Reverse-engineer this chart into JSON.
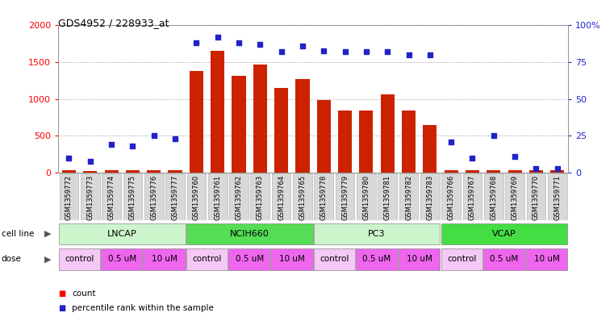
{
  "title": "GDS4952 / 228933_at",
  "samples": [
    "GSM1359772",
    "GSM1359773",
    "GSM1359774",
    "GSM1359775",
    "GSM1359776",
    "GSM1359777",
    "GSM1359760",
    "GSM1359761",
    "GSM1359762",
    "GSM1359763",
    "GSM1359764",
    "GSM1359765",
    "GSM1359778",
    "GSM1359779",
    "GSM1359780",
    "GSM1359781",
    "GSM1359782",
    "GSM1359783",
    "GSM1359766",
    "GSM1359767",
    "GSM1359768",
    "GSM1359769",
    "GSM1359770",
    "GSM1359771"
  ],
  "counts": [
    30,
    25,
    30,
    30,
    30,
    30,
    1380,
    1660,
    1320,
    1470,
    1150,
    1270,
    990,
    840,
    845,
    1060,
    845,
    650,
    30,
    30,
    30,
    30,
    30,
    30
  ],
  "percentile_ranks": [
    10,
    8,
    19,
    18,
    25,
    23,
    88,
    92,
    88,
    87,
    82,
    86,
    83,
    82,
    82,
    82,
    80,
    80,
    21,
    10,
    25,
    11,
    3,
    3
  ],
  "cell_lines": [
    {
      "name": "LNCAP",
      "start": 0,
      "end": 6,
      "color": "#ccf5cc"
    },
    {
      "name": "NCIH660",
      "start": 6,
      "end": 12,
      "color": "#55dd55"
    },
    {
      "name": "PC3",
      "start": 12,
      "end": 18,
      "color": "#ccf5cc"
    },
    {
      "name": "VCAP",
      "start": 18,
      "end": 24,
      "color": "#44dd44"
    }
  ],
  "dose_groups": [
    {
      "name": "control",
      "start": 0,
      "end": 2,
      "color": "#f5c8f5"
    },
    {
      "name": "0.5 uM",
      "start": 2,
      "end": 4,
      "color": "#ee66ee"
    },
    {
      "name": "10 uM",
      "start": 4,
      "end": 6,
      "color": "#ee66ee"
    },
    {
      "name": "control",
      "start": 6,
      "end": 8,
      "color": "#f5c8f5"
    },
    {
      "name": "0.5 uM",
      "start": 8,
      "end": 10,
      "color": "#ee66ee"
    },
    {
      "name": "10 uM",
      "start": 10,
      "end": 12,
      "color": "#ee66ee"
    },
    {
      "name": "control",
      "start": 12,
      "end": 14,
      "color": "#f5c8f5"
    },
    {
      "name": "0.5 uM",
      "start": 14,
      "end": 16,
      "color": "#ee66ee"
    },
    {
      "name": "10 uM",
      "start": 16,
      "end": 18,
      "color": "#ee66ee"
    },
    {
      "name": "control",
      "start": 18,
      "end": 20,
      "color": "#f5c8f5"
    },
    {
      "name": "0.5 uM",
      "start": 20,
      "end": 22,
      "color": "#ee66ee"
    },
    {
      "name": "10 uM",
      "start": 22,
      "end": 24,
      "color": "#ee66ee"
    }
  ],
  "bar_color": "#cc2200",
  "dot_color": "#2222cc",
  "ylim_left": [
    0,
    2000
  ],
  "ylim_right": [
    0,
    100
  ],
  "yticks_left": [
    0,
    500,
    1000,
    1500,
    2000
  ],
  "yticks_right": [
    0,
    25,
    50,
    75,
    100
  ],
  "bg_color": "#ffffff",
  "plot_bg": "#ffffff",
  "grid_color": "#888888"
}
